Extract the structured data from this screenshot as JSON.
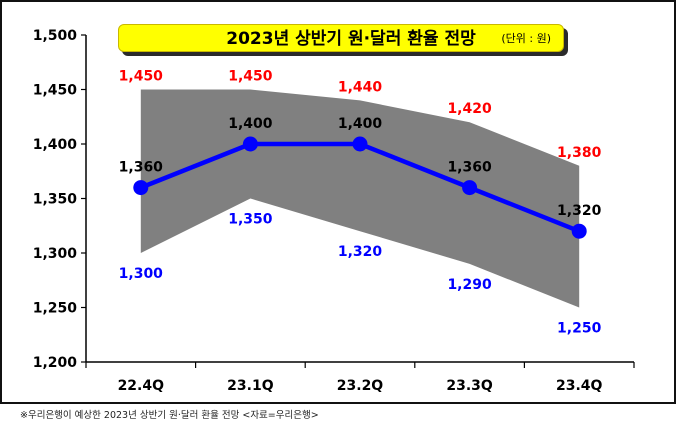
{
  "title": "2023년 상반기 원·달러 환율 전망",
  "unit": "(단위 : 원)",
  "footnote": "※우리은행이 예상한 2023년 상반기 원·달러 환율 전망 <자료=우리은행>",
  "chart_data": {
    "type": "line",
    "categories": [
      "22.4Q",
      "23.1Q",
      "23.2Q",
      "23.3Q",
      "23.4Q"
    ],
    "ylim": [
      1200,
      1500
    ],
    "yticks": [
      "1,200",
      "1,250",
      "1,300",
      "1,350",
      "1,400",
      "1,450",
      "1,500"
    ],
    "ytick_values": [
      1200,
      1250,
      1300,
      1350,
      1400,
      1450,
      1500
    ],
    "series": [
      {
        "role": "forecast",
        "values": [
          1360,
          1400,
          1400,
          1360,
          1320
        ],
        "labels": [
          "1,360",
          "1,400",
          "1,400",
          "1,360",
          "1,320"
        ]
      },
      {
        "role": "upper",
        "values": [
          1450,
          1450,
          1440,
          1420,
          1380
        ],
        "labels": [
          "1,450",
          "1,450",
          "1,440",
          "1,420",
          "1,380"
        ]
      },
      {
        "role": "lower",
        "values": [
          1300,
          1350,
          1320,
          1290,
          1250
        ],
        "labels": [
          "1,300",
          "1,350",
          "1,320",
          "1,290",
          "1,250"
        ]
      }
    ],
    "grid": false,
    "colors": {
      "line": "#0000ff",
      "band": "#808080",
      "upper_label": "#ff0000",
      "lower_label": "#0000ff",
      "forecast_label": "#000000"
    }
  }
}
